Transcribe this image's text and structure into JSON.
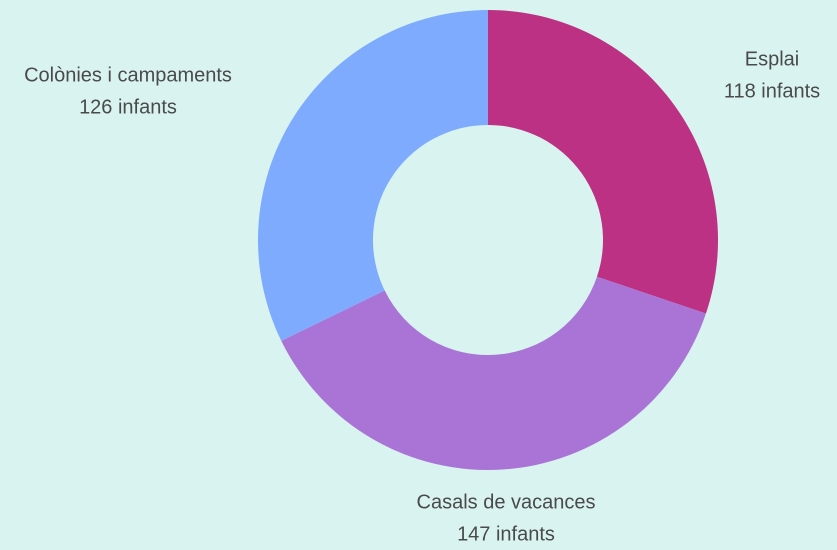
{
  "chart_data": {
    "type": "donut",
    "categories": [
      "Esplai",
      "Casals de vacances",
      "Colònies i campaments"
    ],
    "values": [
      118,
      147,
      126
    ],
    "value_labels": [
      "118 infants",
      "147 infants",
      "126 infants"
    ],
    "colors": [
      "#bc3183",
      "#a974d6",
      "#7eabfd"
    ]
  }
}
